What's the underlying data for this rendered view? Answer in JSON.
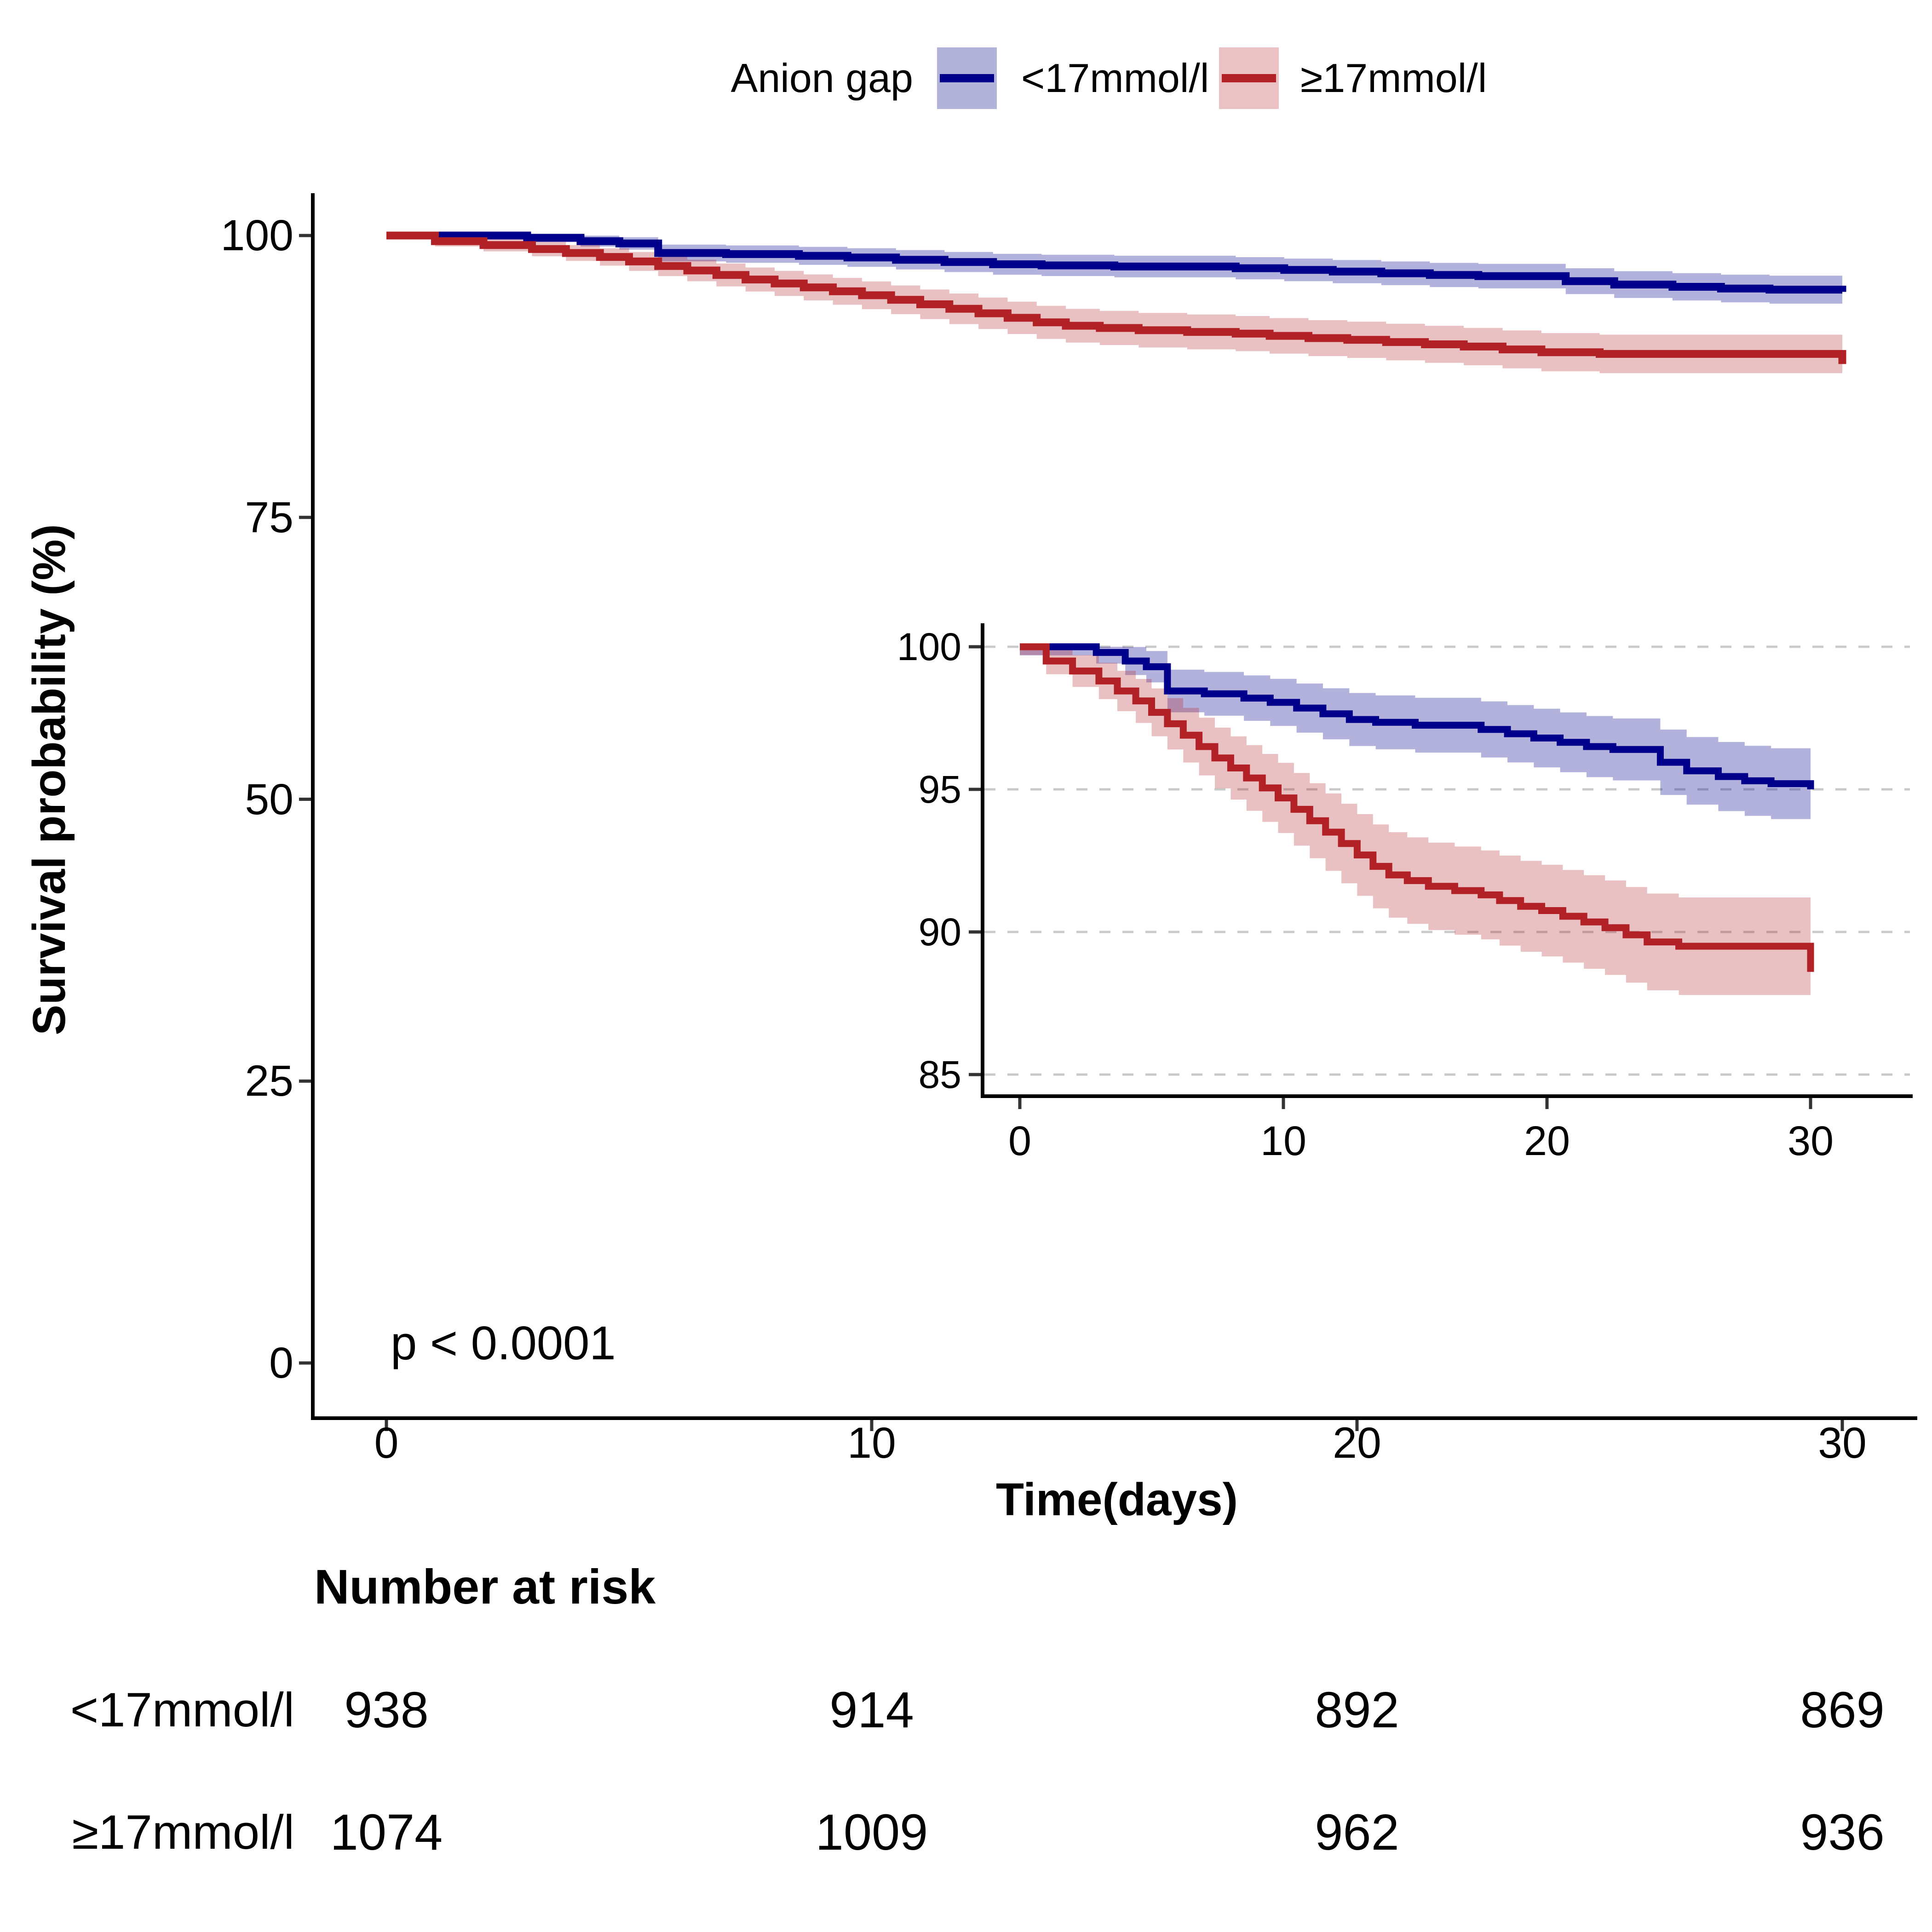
{
  "figure": {
    "legend": {
      "title": "Anion gap",
      "items": [
        {
          "label": "<17mmol/l",
          "line_color": "#00008B",
          "key_bg": "#B2B3D8"
        },
        {
          "label": "≥17mmol/l",
          "line_color": "#B22126",
          "key_bg": "#EBC2C4"
        }
      ]
    },
    "p_value": "p < 0.0001",
    "x_label": "Time(days)",
    "y_label": "Survival probability (%)"
  },
  "chart_data": {
    "type": "line",
    "variant": "kaplan_meier_step_with_inset",
    "title": "",
    "xlabel": "Time(days)",
    "ylabel": "Survival probability (%)",
    "legend_title": "Anion gap",
    "p_value": "p < 0.0001",
    "x_ticks": [
      0,
      10,
      20,
      30
    ],
    "main_axis": {
      "y_ticks": [
        0,
        25,
        50,
        75,
        100
      ],
      "ylim": [
        0,
        100
      ],
      "grid": false
    },
    "inset_axis": {
      "y_ticks": [
        85,
        90,
        95,
        100
      ],
      "ylim": [
        84,
        100.5
      ],
      "grid": "dashed"
    },
    "series": [
      {
        "name": "<17mmol/l",
        "color": "#00008B",
        "band_color": "rgba(0,0,139,0.30)",
        "ci_k": 0.55,
        "steps": [
          [
            0,
            100
          ],
          [
            2.9,
            99.8
          ],
          [
            4,
            99.5
          ],
          [
            4.8,
            99.3
          ],
          [
            5.6,
            98.45
          ],
          [
            7,
            98.35
          ],
          [
            8.5,
            98.2
          ],
          [
            9.5,
            98.05
          ],
          [
            10.5,
            97.85
          ],
          [
            11.5,
            97.65
          ],
          [
            12.5,
            97.45
          ],
          [
            13.5,
            97.35
          ],
          [
            15,
            97.25
          ],
          [
            17.5,
            97.1
          ],
          [
            18.5,
            96.95
          ],
          [
            19.5,
            96.8
          ],
          [
            20.5,
            96.65
          ],
          [
            21.5,
            96.5
          ],
          [
            22.5,
            96.4
          ],
          [
            24.3,
            95.95
          ],
          [
            25.3,
            95.65
          ],
          [
            26.5,
            95.45
          ],
          [
            27.5,
            95.3
          ],
          [
            28.5,
            95.2
          ],
          [
            30,
            95.0
          ]
        ]
      },
      {
        "name": "≥17mmol/l",
        "color": "#B22126",
        "band_color": "rgba(178,33,38,0.28)",
        "ci_k": 0.52,
        "steps": [
          [
            0,
            100
          ],
          [
            1,
            99.5
          ],
          [
            2,
            99.15
          ],
          [
            3,
            98.8
          ],
          [
            3.7,
            98.45
          ],
          [
            4.4,
            98.1
          ],
          [
            5,
            97.7
          ],
          [
            5.6,
            97.3
          ],
          [
            6.2,
            96.9
          ],
          [
            6.8,
            96.5
          ],
          [
            7.4,
            96.1
          ],
          [
            8,
            95.75
          ],
          [
            8.6,
            95.4
          ],
          [
            9.2,
            95.05
          ],
          [
            9.8,
            94.7
          ],
          [
            10.4,
            94.3
          ],
          [
            11,
            93.9
          ],
          [
            11.6,
            93.5
          ],
          [
            12.2,
            93.1
          ],
          [
            12.8,
            92.7
          ],
          [
            13.4,
            92.3
          ],
          [
            14,
            92.0
          ],
          [
            14.7,
            91.8
          ],
          [
            15.5,
            91.6
          ],
          [
            16.5,
            91.45
          ],
          [
            17.5,
            91.3
          ],
          [
            18.2,
            91.1
          ],
          [
            19,
            90.9
          ],
          [
            19.8,
            90.75
          ],
          [
            20.6,
            90.55
          ],
          [
            21.4,
            90.35
          ],
          [
            22.2,
            90.15
          ],
          [
            23,
            89.9
          ],
          [
            23.8,
            89.65
          ],
          [
            25,
            89.5
          ],
          [
            30,
            88.6
          ]
        ]
      }
    ],
    "risk_table": {
      "title": "Number at risk",
      "times": [
        0,
        10,
        20,
        30
      ],
      "rows": [
        {
          "label": "<17mmol/l",
          "values": [
            "938",
            "914",
            "892",
            "869"
          ]
        },
        {
          "label": "≥17mmol/l",
          "values": [
            "1074",
            "1009",
            "962",
            "936"
          ]
        }
      ]
    }
  }
}
